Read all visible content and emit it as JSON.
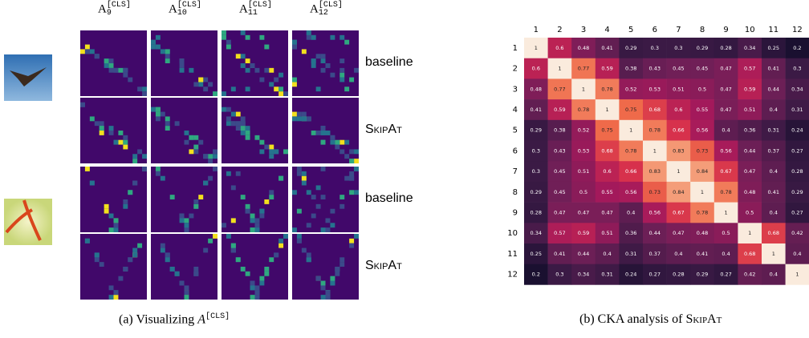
{
  "panel_a": {
    "columns": [
      {
        "base": "A",
        "sub": "9",
        "sup": "[CLS]"
      },
      {
        "base": "A",
        "sub": "10",
        "sup": "[CLS]"
      },
      {
        "base": "A",
        "sub": "11",
        "sup": "[CLS]"
      },
      {
        "base": "A",
        "sub": "12",
        "sup": "[CLS]"
      }
    ],
    "rows": [
      "baseline",
      "SkipAt",
      "baseline",
      "SkipAt"
    ],
    "caption": {
      "text": "(a) Visualizing",
      "symbol": "A",
      "sup": "[CLS]"
    }
  },
  "chart_data": {
    "type": "heatmap",
    "colormap": "rocket",
    "x": [
      1,
      2,
      3,
      4,
      5,
      6,
      7,
      8,
      9,
      10,
      11,
      12
    ],
    "y": [
      1,
      2,
      3,
      4,
      5,
      6,
      7,
      8,
      9,
      10,
      11,
      12
    ],
    "values": [
      [
        1,
        0.6,
        0.48,
        0.41,
        0.29,
        0.3,
        0.3,
        0.29,
        0.28,
        0.34,
        0.25,
        0.2
      ],
      [
        0.6,
        1,
        0.77,
        0.59,
        0.38,
        0.43,
        0.45,
        0.45,
        0.47,
        0.57,
        0.41,
        0.3
      ],
      [
        0.48,
        0.77,
        1,
        0.78,
        0.52,
        0.53,
        0.51,
        0.5,
        0.47,
        0.59,
        0.44,
        0.34
      ],
      [
        0.41,
        0.59,
        0.78,
        1,
        0.75,
        0.68,
        0.6,
        0.55,
        0.47,
        0.51,
        0.4,
        0.31
      ],
      [
        0.29,
        0.38,
        0.52,
        0.75,
        1,
        0.78,
        0.66,
        0.56,
        0.4,
        0.36,
        0.31,
        0.24
      ],
      [
        0.3,
        0.43,
        0.53,
        0.68,
        0.78,
        1,
        0.83,
        0.73,
        0.56,
        0.44,
        0.37,
        0.27
      ],
      [
        0.3,
        0.45,
        0.51,
        0.6,
        0.66,
        0.83,
        1,
        0.84,
        0.67,
        0.47,
        0.4,
        0.28
      ],
      [
        0.29,
        0.45,
        0.5,
        0.55,
        0.56,
        0.73,
        0.84,
        1,
        0.78,
        0.48,
        0.41,
        0.29
      ],
      [
        0.28,
        0.47,
        0.47,
        0.47,
        0.4,
        0.56,
        0.67,
        0.78,
        1,
        0.5,
        0.4,
        0.27
      ],
      [
        0.34,
        0.57,
        0.59,
        0.51,
        0.36,
        0.44,
        0.47,
        0.48,
        0.5,
        1,
        0.68,
        0.42
      ],
      [
        0.25,
        0.41,
        0.44,
        0.4,
        0.31,
        0.37,
        0.4,
        0.41,
        0.4,
        0.68,
        1,
        0.4
      ],
      [
        0.2,
        0.3,
        0.34,
        0.31,
        0.24,
        0.27,
        0.28,
        0.29,
        0.27,
        0.42,
        0.4,
        1
      ]
    ],
    "caption": {
      "text": "(b) CKA analysis of",
      "name": "SkipAt"
    }
  }
}
